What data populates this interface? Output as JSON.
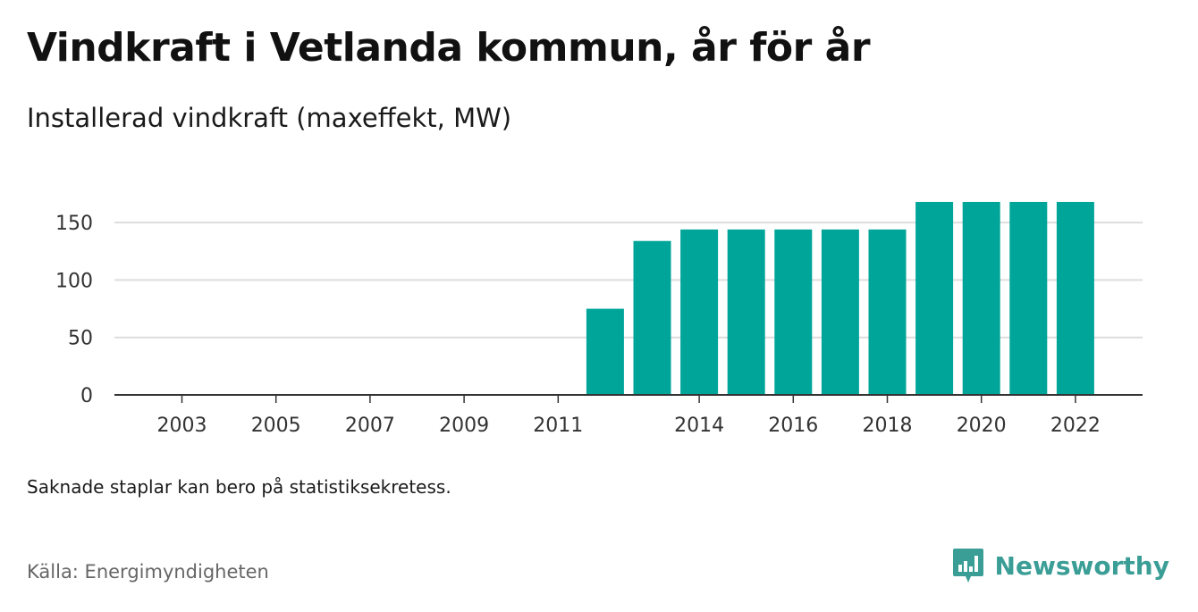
{
  "title": "Vindkraft i Vetlanda kommun, år för år",
  "subtitle": "Installerad vindkraft (maxeffekt, MW)",
  "note": "Saknade staplar kan bero på statistiksekretess.",
  "source": "Källa: Energimyndigheten",
  "brand": {
    "name": "Newsworthy",
    "icon": "newsworthy-logo-icon",
    "color": "#3a9e96"
  },
  "colors": {
    "bar": "#00a59a",
    "grid": "#dddddd",
    "axis": "#333333"
  },
  "chart_data": {
    "type": "bar",
    "categories": [
      "2003",
      "2004",
      "2005",
      "2006",
      "2007",
      "2008",
      "2009",
      "2010",
      "2011",
      "2012",
      "2013",
      "2014",
      "2015",
      "2016",
      "2017",
      "2018",
      "2019",
      "2020",
      "2021",
      "2022"
    ],
    "values": [
      0,
      0,
      0,
      0,
      0,
      0,
      0,
      0,
      0,
      75,
      134,
      144,
      144,
      144,
      144,
      144,
      168,
      168,
      168,
      168
    ],
    "x_tick_labels": [
      "2003",
      "2005",
      "2007",
      "2009",
      "2011",
      "2014",
      "2016",
      "2018",
      "2020",
      "2022"
    ],
    "y_ticks": [
      0,
      50,
      100,
      150
    ],
    "ylim": [
      0,
      168
    ],
    "title": "Vindkraft i Vetlanda kommun, år för år",
    "xlabel": "",
    "ylabel": "Installerad vindkraft (maxeffekt, MW)",
    "grid": true
  }
}
